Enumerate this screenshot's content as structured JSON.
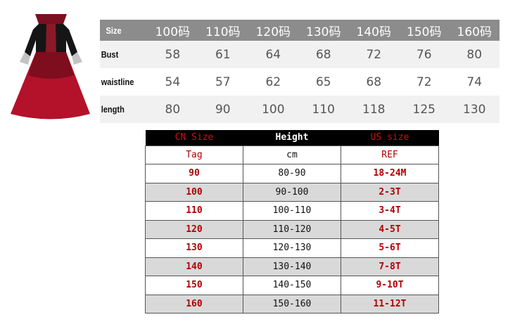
{
  "measure_table": {
    "header": {
      "label": "Size",
      "sizes": [
        "100码",
        "110码",
        "120码",
        "130码",
        "140码",
        "150码",
        "160码"
      ]
    },
    "rows": [
      {
        "label": "Bust",
        "values": [
          "58",
          "61",
          "64",
          "68",
          "72",
          "76",
          "80"
        ]
      },
      {
        "label": "waistline",
        "values": [
          "54",
          "57",
          "62",
          "65",
          "68",
          "72",
          "74"
        ]
      },
      {
        "label": "length",
        "values": [
          "80",
          "90",
          "100",
          "110",
          "118",
          "125",
          "130"
        ]
      }
    ],
    "colors": {
      "header_bg": "#8c8c8c",
      "stripe": "#f1f1f1"
    }
  },
  "size_table": {
    "header": [
      "CN Size",
      "Height",
      "US size"
    ],
    "subheader": [
      "Tag",
      "cm",
      "REF"
    ],
    "rows": [
      [
        "90",
        "80-90",
        "18-24M"
      ],
      [
        "100",
        "90-100",
        "2-3T"
      ],
      [
        "110",
        "100-110",
        "3-4T"
      ],
      [
        "120",
        "110-120",
        "4-5T"
      ],
      [
        "130",
        "120-130",
        "5-6T"
      ],
      [
        "140",
        "130-140",
        "7-8T"
      ],
      [
        "150",
        "140-150",
        "9-10T"
      ],
      [
        "160",
        "150-160",
        "11-12T"
      ]
    ],
    "colors": {
      "accent": "#b00000",
      "header_bg": "#000000",
      "stripe": "#d9d9d9"
    }
  },
  "product_image": {
    "icon": "red-black-gown-dress"
  }
}
